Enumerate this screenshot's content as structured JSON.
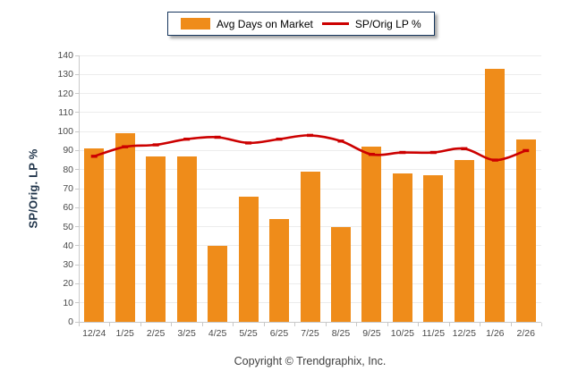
{
  "legend": {
    "bar_label": "Avg Days on Market",
    "line_label": "SP/Orig LP %"
  },
  "y_axis_title": "SP/Orig. LP %",
  "footer": {
    "copyright": "Copyright © Trendgraphix, Inc."
  },
  "colors": {
    "bar": "#EF8C1A",
    "line": "#CC0000",
    "gridline": "#ECECEC",
    "axis": "#C9C9C9",
    "tick_text": "#4A4A4A",
    "legend_border": "#17375E"
  },
  "chart_data": {
    "type": "bar",
    "subtype": "combo bar+line",
    "categories": [
      "12/24",
      "1/25",
      "2/25",
      "3/25",
      "4/25",
      "5/25",
      "6/25",
      "7/25",
      "8/25",
      "9/25",
      "10/25",
      "11/25",
      "12/25",
      "1/26",
      "2/26"
    ],
    "series": [
      {
        "name": "Avg Days on Market",
        "type": "bar",
        "color": "#EF8C1A",
        "values": [
          91,
          99,
          87,
          87,
          40,
          66,
          54,
          79,
          50,
          92,
          78,
          77,
          85,
          133,
          96
        ]
      },
      {
        "name": "SP/Orig LP %",
        "type": "line",
        "color": "#CC0000",
        "values": [
          87,
          92,
          93,
          96,
          97,
          94,
          96,
          98,
          95,
          88,
          89,
          89,
          91,
          85,
          90
        ]
      }
    ],
    "title": "",
    "xlabel": "",
    "ylabel": "SP/Orig. LP %",
    "ylim": [
      0,
      140
    ],
    "yticks": [
      0,
      10,
      20,
      30,
      40,
      50,
      60,
      70,
      80,
      90,
      100,
      110,
      120,
      130,
      140
    ],
    "grid": "horizontal",
    "legend_position": "top-center"
  }
}
